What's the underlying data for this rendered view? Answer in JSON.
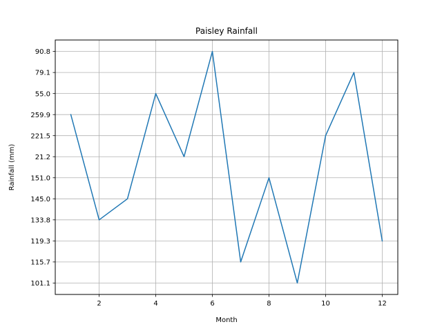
{
  "chart_data": {
    "type": "line",
    "title": "Paisley Rainfall",
    "xlabel": "Month",
    "ylabel": "Rainfall (mm)",
    "x": [
      1,
      2,
      3,
      4,
      5,
      6,
      7,
      8,
      9,
      10,
      11,
      12
    ],
    "y_categories": [
      "101.1",
      "115.7",
      "119.3",
      "133.8",
      "145.0",
      "151.0",
      "21.2",
      "221.5",
      "259.9",
      "55.0",
      "79.1",
      "90.8"
    ],
    "y_axis_type": "categorical",
    "series": [
      {
        "values": [
          "259.9",
          "133.8",
          "145.0",
          "55.0",
          "21.2",
          "90.8",
          "115.7",
          "151.0",
          "101.1",
          "221.5",
          "79.1",
          "119.3"
        ],
        "color": "#1f77b4"
      }
    ],
    "xticks": [
      2,
      4,
      6,
      8,
      10,
      12
    ],
    "xlim": [
      0.45,
      12.55
    ],
    "grid": true
  }
}
